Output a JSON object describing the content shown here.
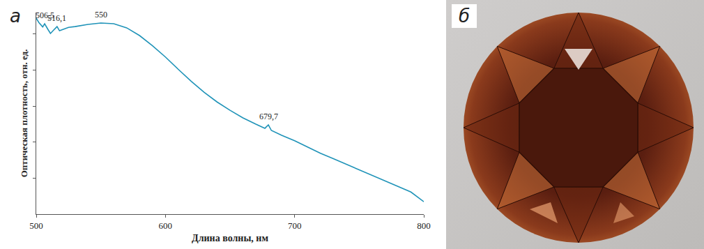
{
  "chart_data": {
    "type": "line",
    "panel_label": "а",
    "xlabel": "Длина волны, нм",
    "ylabel": "Оптическая плотность, отн. ед.",
    "color": "#1f93b8",
    "x": [
      500,
      502,
      505,
      506.5,
      509,
      511,
      513,
      516.1,
      518,
      521,
      525,
      530,
      540,
      550,
      560,
      570,
      580,
      590,
      600,
      610,
      620,
      630,
      640,
      650,
      660,
      670,
      677,
      679.7,
      682,
      690,
      700,
      710,
      720,
      730,
      740,
      750,
      760,
      770,
      780,
      790,
      800
    ],
    "values": [
      1.088,
      1.065,
      1.04,
      1.058,
      1.027,
      1.004,
      1.019,
      1.042,
      1.019,
      1.027,
      1.038,
      1.042,
      1.054,
      1.062,
      1.058,
      1.035,
      0.992,
      0.935,
      0.873,
      0.804,
      0.738,
      0.677,
      0.623,
      0.577,
      0.535,
      0.5,
      0.477,
      0.496,
      0.465,
      0.438,
      0.408,
      0.373,
      0.338,
      0.308,
      0.277,
      0.246,
      0.215,
      0.185,
      0.154,
      0.123,
      0.069
    ],
    "xlim": [
      500,
      800
    ],
    "xticks": [
      500,
      600,
      700,
      800
    ],
    "ylim": [
      0,
      1.12
    ],
    "yticks": [
      0.2,
      0.4,
      0.6,
      0.8,
      1.0
    ],
    "tick_labels": "x",
    "annotations": [
      {
        "text": "506,5",
        "x": 506.5,
        "y": 1.058
      },
      {
        "text": "516,1",
        "x": 516.1,
        "y": 1.042
      },
      {
        "text": "550",
        "x": 550,
        "y": 1.062
      },
      {
        "text": "679,7",
        "x": 679.7,
        "y": 0.496
      }
    ]
  },
  "photo": {
    "panel_label": "б"
  }
}
